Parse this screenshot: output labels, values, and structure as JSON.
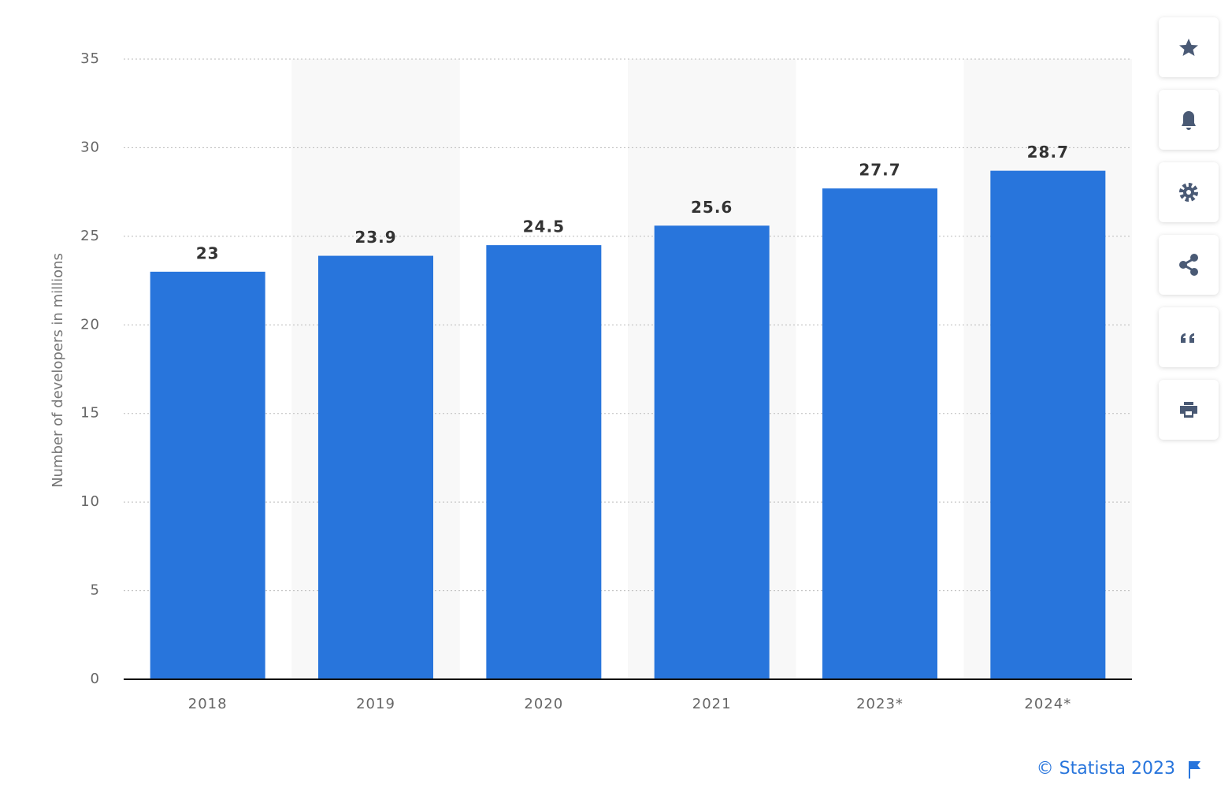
{
  "chart_data": {
    "type": "bar",
    "y_label": "Number of developers in millions",
    "categories": [
      "2018",
      "2019",
      "2020",
      "2021",
      "2023*",
      "2024*"
    ],
    "values": [
      23,
      23.9,
      24.5,
      25.6,
      27.7,
      28.7
    ],
    "color": "#2875dc",
    "ylim": [
      0,
      35
    ],
    "yticks": [
      0,
      5,
      10,
      15,
      20,
      25,
      30,
      35
    ],
    "grid": true,
    "source": "© Statista 2023"
  }
}
